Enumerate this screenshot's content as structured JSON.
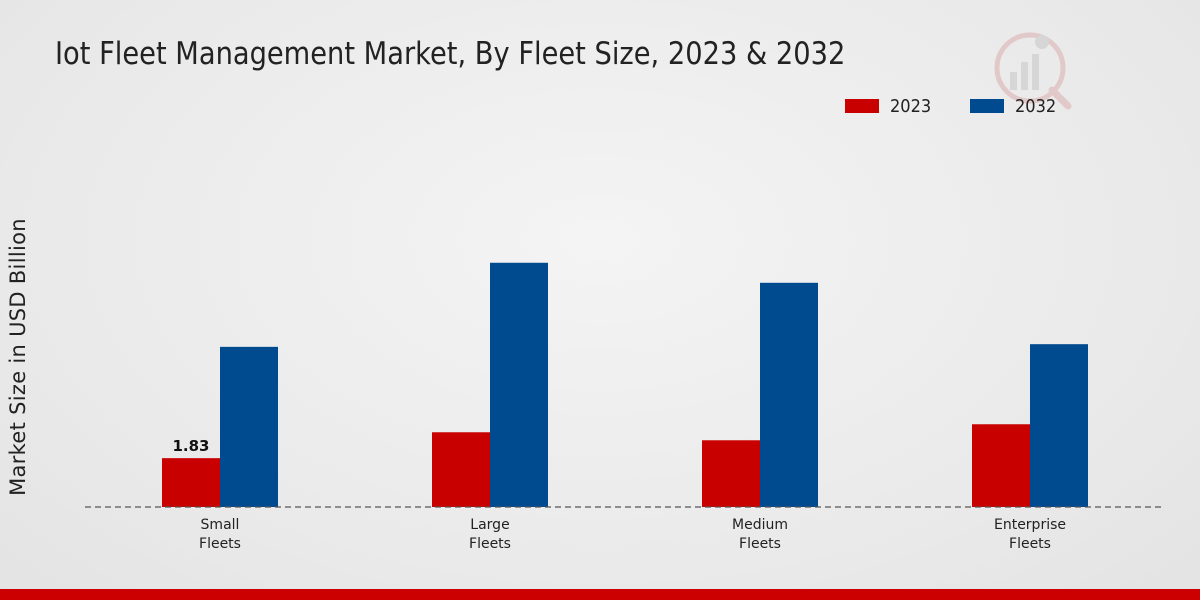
{
  "title": "Iot Fleet Management Market, By Fleet Size, 2023 & 2032",
  "colors": {
    "series_2023": "#c80000",
    "series_2032": "#004a8f",
    "accent_bar": "#cc0000"
  },
  "chart_data": {
    "type": "bar",
    "title": "Iot Fleet Management Market, By Fleet Size, 2023 & 2032",
    "xlabel": "",
    "ylabel": "Market Size in USD Billion",
    "categories": [
      "Small\nFleets",
      "Large\nFleets",
      "Medium\nFleets",
      "Enterprise\nFleets"
    ],
    "series": [
      {
        "name": "2023",
        "values": [
          1.83,
          2.8,
          2.5,
          3.1
        ]
      },
      {
        "name": "2032",
        "values": [
          6.0,
          9.15,
          8.4,
          6.1
        ]
      }
    ],
    "data_labels": [
      {
        "series": 0,
        "index": 0,
        "text": "1.83"
      }
    ],
    "ylim": [
      0,
      13
    ],
    "grid": false,
    "legend": "top-right"
  }
}
